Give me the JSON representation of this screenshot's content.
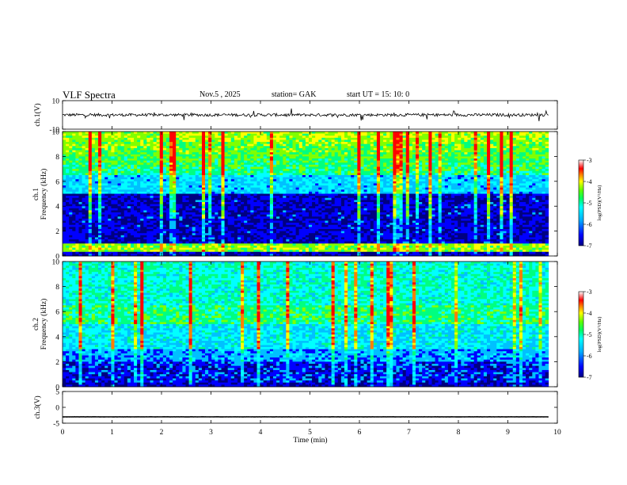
{
  "header": {
    "title": "VLF  Spectra",
    "date": "Nov.5  , 2025",
    "station": "station= GAK",
    "start_ut": "start  UT  =    15: 10: 0"
  },
  "colors": {
    "colormap": [
      "#000080",
      "#0000ff",
      "#00c0ff",
      "#00ffff",
      "#00ff80",
      "#80ff00",
      "#ffff00",
      "#ff8000",
      "#ff0000",
      "#ffffff"
    ]
  },
  "chart_data": [
    {
      "id": "ch1-waveform",
      "type": "line",
      "ylabel": "ch.1(V)",
      "ylim": [
        -10,
        10
      ],
      "yticks": [
        10,
        -10
      ],
      "xlim": [
        0,
        10
      ],
      "baseline": 0,
      "typical_amplitude": 2
    },
    {
      "id": "ch1-spectrogram",
      "type": "heatmap",
      "ylabel": "ch.1\nFrequency  (kHz)",
      "ylim": [
        0,
        10
      ],
      "yticks": [
        0,
        2,
        4,
        6,
        8,
        10
      ],
      "xlim": [
        0,
        10
      ],
      "colorbar": {
        "label": "log(PSD)(V²/Hz)",
        "range": [
          -7,
          -3
        ],
        "ticks": [
          -3,
          -4,
          -5,
          -6,
          -7
        ]
      }
    },
    {
      "id": "ch2-spectrogram",
      "type": "heatmap",
      "ylabel": "ch.2\nFrequency  (kHz)",
      "ylim": [
        0,
        10
      ],
      "yticks": [
        0,
        2,
        4,
        6,
        8,
        10
      ],
      "xlim": [
        0,
        10
      ],
      "colorbar": {
        "label": "log(PSD)(V²/Hz)",
        "range": [
          -7,
          -3
        ],
        "ticks": [
          -3,
          -4,
          -5,
          -6,
          -7
        ]
      }
    },
    {
      "id": "ch3-waveform",
      "type": "line",
      "ylabel": "ch.3(V)",
      "ylim": [
        -5,
        5
      ],
      "yticks": [
        5,
        0,
        -5
      ],
      "xlim": [
        0,
        10
      ],
      "baseline": -3,
      "typical_amplitude": 0.2
    }
  ],
  "xaxis": {
    "label": "Time  (min)",
    "ticks": [
      0,
      1,
      2,
      3,
      4,
      5,
      6,
      7,
      8,
      9,
      10
    ]
  }
}
